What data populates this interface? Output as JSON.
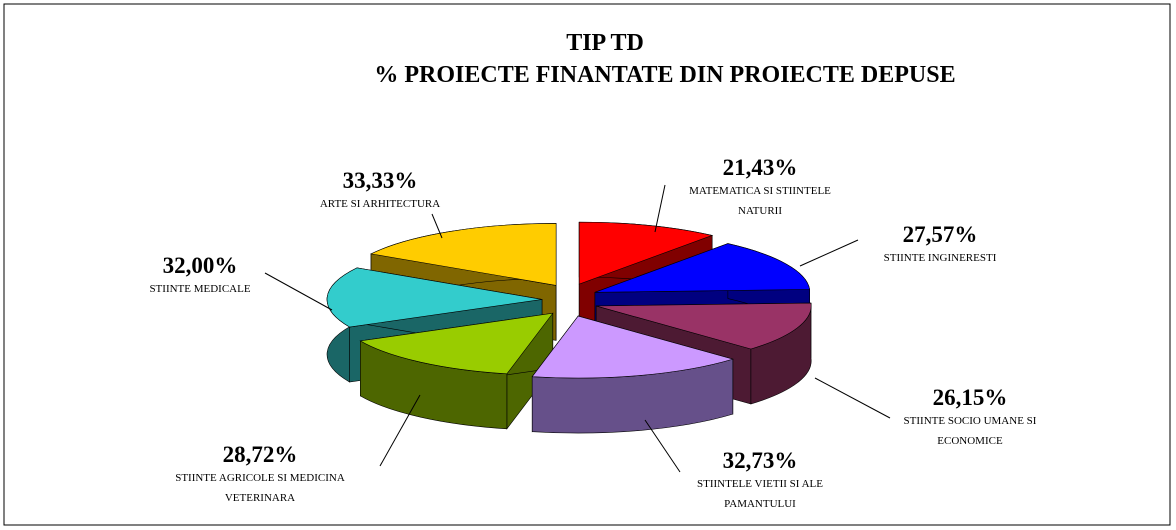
{
  "chart_data": {
    "type": "pie",
    "title": "TIP TD",
    "subtitle": "% PROIECTE FINANTATE DIN PROIECTE DEPUSE",
    "categories": [
      "MATEMATICA SI STIINTELE NATURII",
      "STIINTE INGINERESTI",
      "STIINTE SOCIO UMANE SI ECONOMICE",
      "STIINTELE VIETII SI ALE PAMANTULUI",
      "STIINTE AGRICOLE SI MEDICINA VETERINARA",
      "STIINTE MEDICALE",
      "ARTE SI ARHITECTURA"
    ],
    "values": [
      21.43,
      27.57,
      26.15,
      32.73,
      28.72,
      32.0,
      33.33
    ],
    "value_labels": [
      "21,43%",
      "27,57%",
      "26,15%",
      "32,73%",
      "28,72%",
      "32,00%",
      "33,33%"
    ],
    "colors": [
      "#ff0000",
      "#0000ff",
      "#993366",
      "#cc99ff",
      "#99cc00",
      "#33cccc",
      "#ffcc00"
    ],
    "side_colors": [
      "#800000",
      "#000080",
      "#4d1a33",
      "#66508a",
      "#4d6600",
      "#1a6666",
      "#806600"
    ]
  }
}
